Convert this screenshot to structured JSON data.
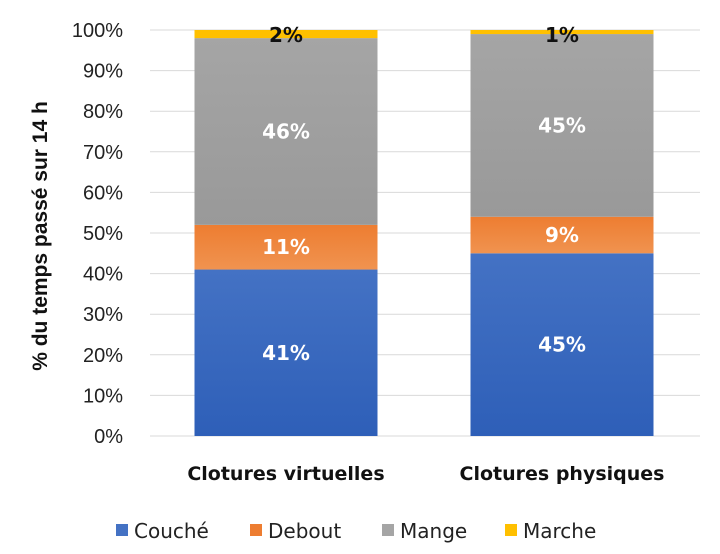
{
  "chart_data": {
    "type": "bar",
    "stacked": true,
    "orientation": "vertical",
    "categories": [
      "Clotures virtuelles",
      "Clotures physiques"
    ],
    "series": [
      {
        "name": "Couché",
        "values": [
          41,
          45
        ],
        "labels": [
          "41%",
          "45%"
        ],
        "color": "#4472C4",
        "color_dark": "#2E5FB8",
        "label_color": "#FFFFFF"
      },
      {
        "name": "Debout",
        "values": [
          11,
          9
        ],
        "labels": [
          "11%",
          "9%"
        ],
        "color": "#ED7D31",
        "color_dark": "#F09350",
        "label_color": "#FFFFFF"
      },
      {
        "name": "Mange",
        "values": [
          46,
          45
        ],
        "labels": [
          "46%",
          "45%"
        ],
        "color": "#A5A5A5",
        "color_dark": "#999999",
        "label_color": "#FFFFFF"
      },
      {
        "name": "Marche",
        "values": [
          2,
          1
        ],
        "labels": [
          "2%",
          "1%"
        ],
        "color": "#FFC000",
        "color_dark": "#FFC000",
        "label_color": "#111111"
      }
    ],
    "ylabel": "% du temps passé sur 14 h",
    "xlabel": "",
    "ylim": [
      0,
      100
    ],
    "yticks": [
      0,
      10,
      20,
      30,
      40,
      50,
      60,
      70,
      80,
      90,
      100
    ],
    "ytick_labels": [
      "0%",
      "10%",
      "20%",
      "30%",
      "40%",
      "50%",
      "60%",
      "70%",
      "80%",
      "90%",
      "100%"
    ],
    "grid": true,
    "legend_position": "bottom"
  }
}
